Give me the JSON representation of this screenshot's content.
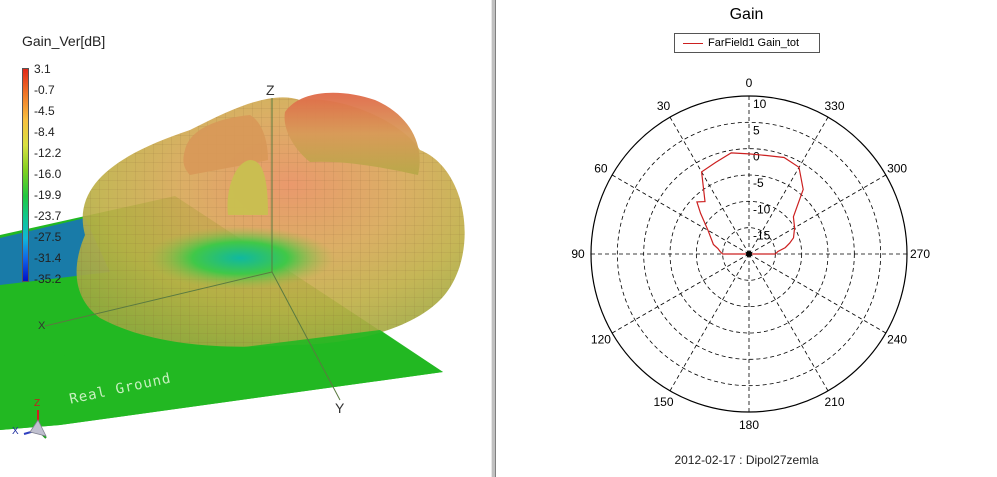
{
  "left_pane": {
    "legend_title": "Gain_Ver[dB]",
    "colorbar_ticks": [
      "3.1",
      "-0.7",
      "-4.5",
      "-8.4",
      "-12.2",
      "-16.0",
      "-19.9",
      "-23.7",
      "-27.5",
      "-31.4",
      "-35.2"
    ],
    "ground_label": "Real Ground",
    "axis_z": "Z",
    "axis_y": "Y",
    "axis_x": "X",
    "triad_z": "Z",
    "triad_x": "X",
    "colors": {
      "ground": "#22b822",
      "pattern_top": "#e07050",
      "pattern_mid": "#c8a050",
      "pattern_low": "#40c040"
    }
  },
  "right_pane": {
    "title": "Gain",
    "legend_entry": "FarField1 Gain_tot",
    "footer": "2012-02-17 : Dipol27zemla",
    "line_color": "#cc2020"
  },
  "chart_data": {
    "type": "polar",
    "title": "Gain",
    "series": [
      {
        "name": "FarField1 Gain_tot",
        "angles_deg": [
          0,
          10,
          20,
          30,
          40,
          45,
          50,
          60,
          70,
          75,
          80,
          85,
          90,
          270,
          275,
          280,
          285,
          290,
          300,
          310,
          320,
          330,
          340,
          350
        ],
        "values_db": [
          -1,
          -0.5,
          -1.5,
          -2,
          -7,
          -6,
          -8,
          -11,
          -12.5,
          -13,
          -14,
          -14.5,
          -15,
          -15,
          -14.5,
          -13,
          -12,
          -11,
          -10,
          -9,
          -4,
          -1,
          -0.5,
          -1
        ]
      }
    ],
    "angle_labels": [
      "0",
      "30",
      "60",
      "90",
      "120",
      "150",
      "180",
      "210",
      "240",
      "270",
      "300",
      "330"
    ],
    "radial_labels": [
      "10",
      "5",
      "0",
      "-5",
      "-10",
      "-15"
    ],
    "radial_range": [
      -20,
      10
    ],
    "angle_direction": "counterclockwise, 0 at top",
    "grid": true,
    "legend_position": "top-center"
  }
}
